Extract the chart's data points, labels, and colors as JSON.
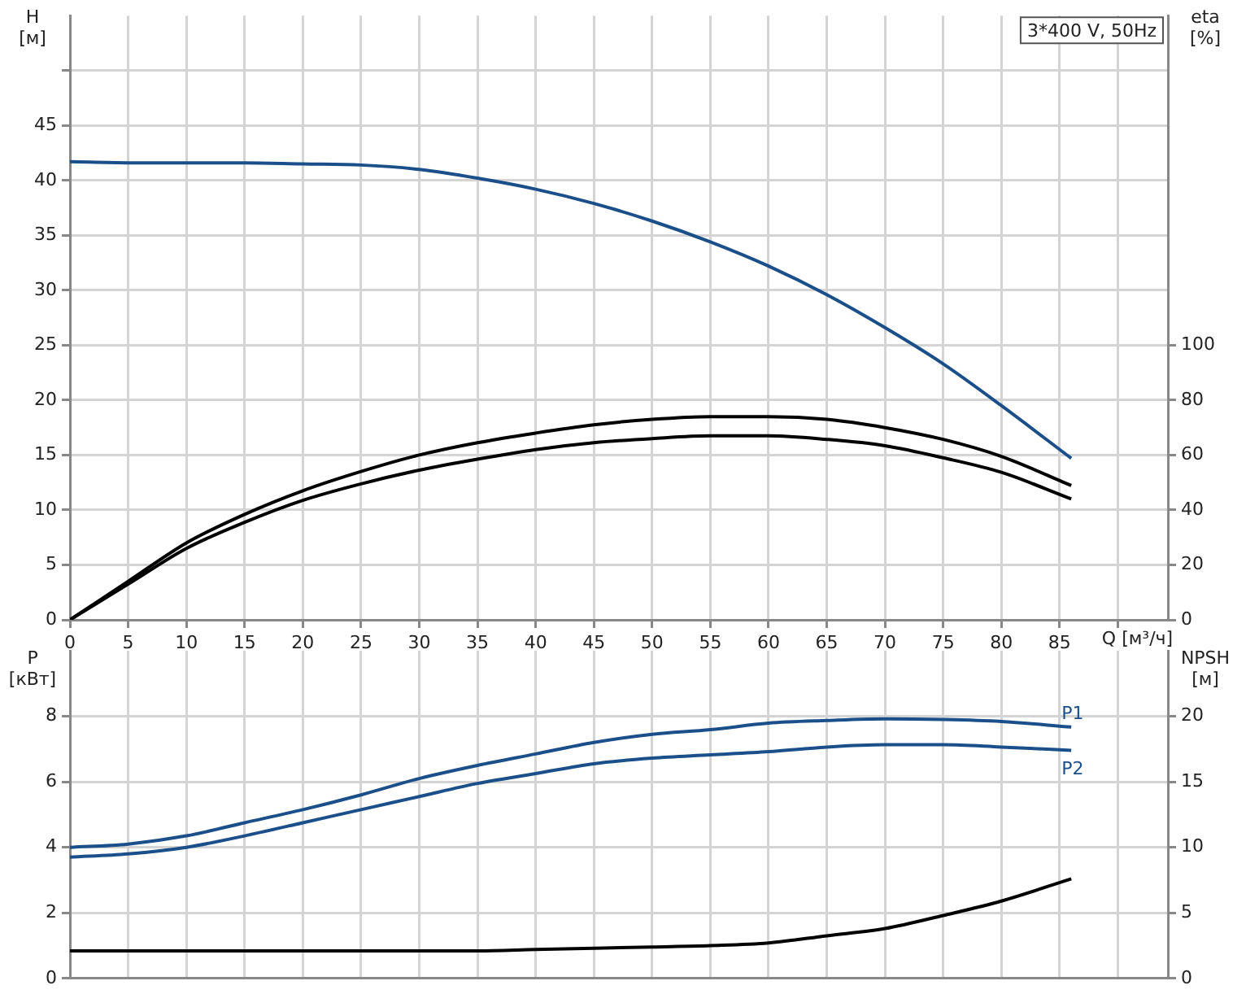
{
  "chart_data": [
    {
      "type": "line",
      "xlabel": "Q [м³/ч]",
      "ylabel": "H [м]",
      "y2label": "eta [%]",
      "annotations": [
        "3*400 V, 50Hz"
      ],
      "xlim": [
        0,
        94.3
      ],
      "xticks": [
        0,
        5,
        10,
        15,
        20,
        25,
        30,
        35,
        40,
        45,
        50,
        55,
        60,
        65,
        70,
        75,
        80,
        85,
        {
          "value": 90,
          "label": null
        }
      ],
      "ylim": [
        0,
        55
      ],
      "yticks": [
        0,
        5,
        10,
        15,
        20,
        25,
        30,
        35,
        40,
        45,
        {
          "value": 50,
          "label": null
        }
      ],
      "y2lim": [
        0,
        220
      ],
      "y2ticks": [
        0,
        20,
        40,
        60,
        80,
        100
      ],
      "grid": true,
      "legend": false,
      "marker": "none",
      "x": [
        0,
        5,
        10,
        15,
        20,
        25,
        30,
        35,
        40,
        45,
        50,
        55,
        60,
        65,
        70,
        75,
        80,
        86
      ],
      "series": [
        {
          "color": "#1b4f8a",
          "values": [
            41.7,
            41.6,
            41.6,
            41.6,
            41.5,
            41.4,
            41.0,
            40.2,
            39.2,
            37.9,
            36.3,
            34.4,
            32.2,
            29.6,
            26.6,
            23.3,
            19.5,
            14.7
          ]
        },
        {
          "color": "#000000",
          "axis": "y2",
          "values": [
            0,
            14,
            28,
            38.4,
            47,
            54,
            60,
            64.5,
            68,
            71,
            73,
            74,
            74,
            73,
            70,
            65.7,
            59.5,
            48.9
          ]
        },
        {
          "color": "#000000",
          "axis": "y2",
          "values": [
            0,
            13,
            26,
            35.5,
            43.5,
            49.5,
            54.5,
            58.5,
            62,
            64.5,
            66,
            67,
            67,
            65.7,
            63.4,
            59,
            53.7,
            44
          ]
        }
      ]
    },
    {
      "type": "line",
      "ylabel": "P [кВт]",
      "y2label": "NPSH [м]",
      "tick_labels": "y",
      "xlim": [
        0,
        94.3
      ],
      "xticks": [
        0,
        5,
        10,
        15,
        20,
        25,
        30,
        35,
        40,
        45,
        50,
        55,
        60,
        65,
        70,
        75,
        80,
        85,
        {
          "value": 90,
          "label": null
        }
      ],
      "ylim": [
        0,
        10
      ],
      "yticks": [
        0,
        2,
        4,
        6,
        8
      ],
      "y2lim": [
        0,
        25
      ],
      "y2ticks": [
        0,
        5,
        10,
        15,
        20
      ],
      "grid": true,
      "legend": false,
      "marker": "none",
      "x": [
        0,
        5,
        10,
        15,
        20,
        25,
        30,
        35,
        40,
        45,
        50,
        55,
        60,
        65,
        70,
        75,
        80,
        86
      ],
      "series": [
        {
          "name": "P1",
          "color": "#1b4f8a",
          "values": [
            4.0,
            4.1,
            4.35,
            4.75,
            5.15,
            5.6,
            6.1,
            6.5,
            6.85,
            7.2,
            7.45,
            7.59,
            7.79,
            7.87,
            7.92,
            7.9,
            7.84,
            7.67
          ]
        },
        {
          "name": "P2",
          "color": "#1b4f8a",
          "values": [
            3.7,
            3.8,
            4.0,
            4.35,
            4.75,
            5.15,
            5.55,
            5.95,
            6.25,
            6.55,
            6.72,
            6.82,
            6.92,
            7.06,
            7.13,
            7.13,
            7.06,
            6.96
          ]
        },
        {
          "color": "#000000",
          "axis": "y2",
          "values": [
            2.1,
            2.1,
            2.1,
            2.1,
            2.1,
            2.1,
            2.1,
            2.1,
            2.2,
            2.3,
            2.4,
            2.5,
            2.7,
            3.25,
            3.8,
            4.8,
            5.9,
            7.6
          ]
        }
      ]
    }
  ]
}
